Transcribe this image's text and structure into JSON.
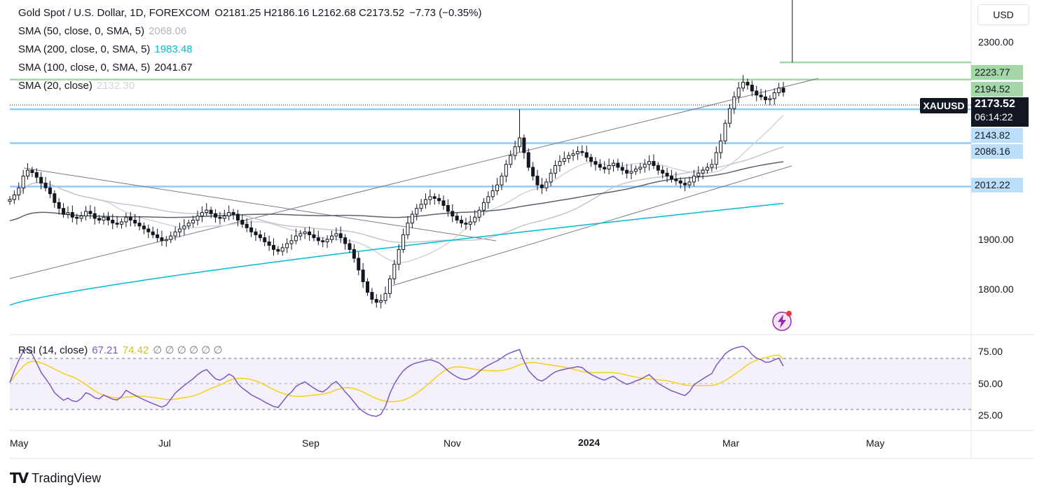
{
  "header": {
    "title": "Gold Spot / U.S. Dollar, 1D, FOREXCOM",
    "ohlc": {
      "o_label": "O",
      "o": "2181.25",
      "h_label": "H",
      "h": "2186.16",
      "l_label": "L",
      "l": "2162.68",
      "c_label": "C",
      "c": "2173.52",
      "change": "−7.73 (−0.35%)"
    }
  },
  "indicators": [
    {
      "label": "SMA (50, close, 0, SMA, 5)",
      "value": "2068.06",
      "color": "#b2b5be"
    },
    {
      "label": "SMA (200, close, 0, SMA, 5)",
      "value": "1983.48",
      "color": "#00bcd4"
    },
    {
      "label": "SMA (100, close, 0, SMA, 5)",
      "value": "2041.67",
      "color": "#131722"
    },
    {
      "label": "SMA (20, close)",
      "value": "2132.30",
      "color": "#d1d4dc"
    }
  ],
  "rsi": {
    "label": "RSI (14, close)",
    "value": "67.21",
    "value_color": "#7e57c2",
    "ma_value": "74.42",
    "ma_color": "#d4c01f",
    "extra": "∅ ∅ ∅ ∅ ∅ ∅"
  },
  "currency_button": "USD",
  "symbol_tag": "XAUUSD",
  "last_price": {
    "price": "2173.52",
    "countdown": "06:14:22"
  },
  "price_axis": [
    "2300.00",
    "1900.00",
    "1800.00"
  ],
  "rsi_axis": [
    "75.00",
    "50.00",
    "25.00"
  ],
  "time_axis": [
    "May",
    "Jul",
    "Sep",
    "Nov",
    "2024",
    "Mar",
    "May"
  ],
  "level_tags": [
    {
      "value": "2223.77",
      "color": "#a5d6a7"
    },
    {
      "value": "2194.52",
      "color": "#a5d6a7"
    },
    {
      "value": "2143.82",
      "color": "#bbdefb"
    },
    {
      "value": "2086.16",
      "color": "#bbdefb"
    },
    {
      "value": "2012.22",
      "color": "#bbdefb"
    }
  ],
  "brand": "TradingView",
  "chart_data": {
    "type": "candlestick",
    "title": "Gold Spot / U.S. Dollar, 1D, FOREXCOM",
    "ylim": [
      1760,
      2330
    ],
    "horizontal_levels": [
      {
        "price": 2223.77,
        "color": "#a5d6a7"
      },
      {
        "price": 2194.52,
        "color": "#a5d6a7"
      },
      {
        "price": 2143.82,
        "color": "#90caf9"
      },
      {
        "price": 2086.16,
        "color": "#90caf9"
      },
      {
        "price": 2012.22,
        "color": "#90caf9"
      }
    ],
    "close_series": [
      1990,
      1998,
      2010,
      2030,
      2040,
      2036,
      2028,
      2018,
      2010,
      2000,
      1985,
      1975,
      1965,
      1968,
      1960,
      1958,
      1962,
      1970,
      1966,
      1958,
      1955,
      1960,
      1955,
      1950,
      1948,
      1952,
      1960,
      1955,
      1950,
      1945,
      1940,
      1935,
      1930,
      1925,
      1920,
      1922,
      1928,
      1935,
      1940,
      1945,
      1950,
      1955,
      1962,
      1968,
      1972,
      1966,
      1960,
      1958,
      1962,
      1968,
      1965,
      1955,
      1948,
      1942,
      1935,
      1930,
      1925,
      1918,
      1912,
      1905,
      1902,
      1908,
      1915,
      1920,
      1928,
      1932,
      1935,
      1930,
      1925,
      1920,
      1918,
      1922,
      1928,
      1932,
      1925,
      1915,
      1905,
      1890,
      1870,
      1850,
      1832,
      1820,
      1815,
      1818,
      1830,
      1855,
      1880,
      1905,
      1930,
      1950,
      1965,
      1975,
      1982,
      1990,
      1995,
      1992,
      1988,
      1980,
      1970,
      1962,
      1955,
      1950,
      1948,
      1952,
      1960,
      1972,
      1985,
      1995,
      2005,
      2015,
      2030,
      2050,
      2065,
      2080,
      2095,
      2070,
      2045,
      2030,
      2015,
      2010,
      2020,
      2035,
      2048,
      2055,
      2060,
      2065,
      2068,
      2072,
      2070,
      2062,
      2055,
      2050,
      2045,
      2042,
      2048,
      2052,
      2045,
      2040,
      2035,
      2038,
      2042,
      2045,
      2050,
      2055,
      2048,
      2040,
      2035,
      2030,
      2025,
      2022,
      2018,
      2015,
      2020,
      2030,
      2035,
      2040,
      2045,
      2050,
      2070,
      2090,
      2120,
      2145,
      2165,
      2180,
      2190,
      2185,
      2175,
      2168,
      2165,
      2160,
      2162,
      2172,
      2180,
      2173
    ],
    "sma200_endpoints": [
      {
        "y": 1810
      },
      {
        "y": 1983.48
      }
    ],
    "sma100_endpoints": [
      {
        "y": 1930
      },
      {
        "y": 2041.67
      }
    ],
    "sma50_end": 2068.06,
    "sma20_end": 2132.3,
    "rsi_range": [
      0,
      100
    ],
    "rsi_levels": [
      70,
      50,
      30
    ],
    "rsi_last": 67.21,
    "rsi_ma_last": 74.42
  }
}
